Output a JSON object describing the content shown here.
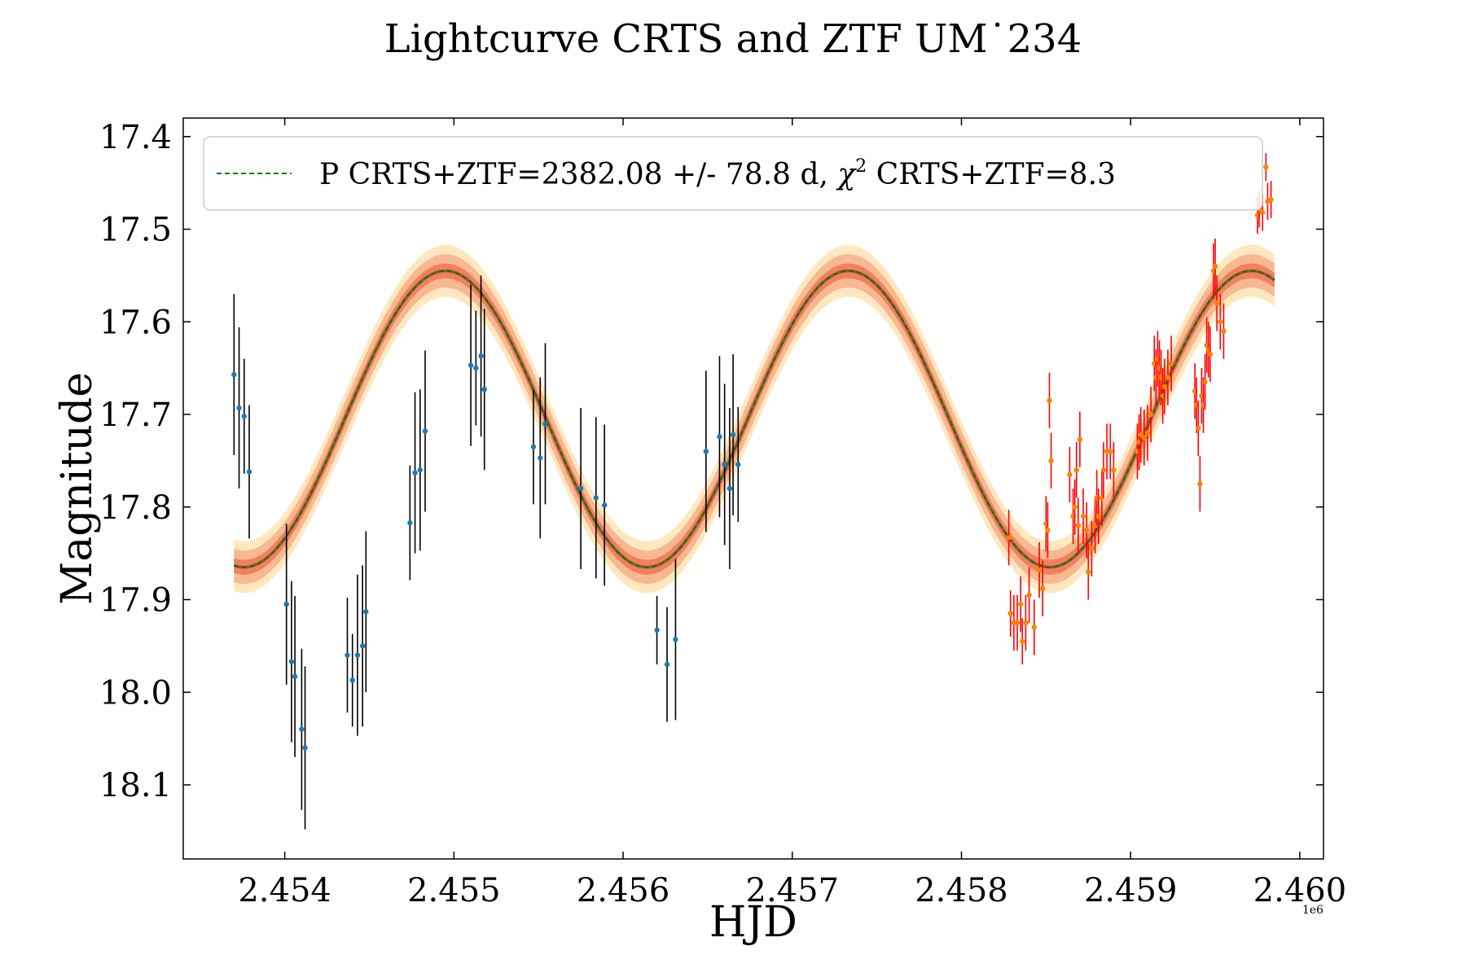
{
  "chart_data": {
    "type": "scatter",
    "title": "Lightcurve CRTS and ZTF UM˙234",
    "xlabel": "HJD",
    "ylabel": "Magnitude",
    "x_offset_label": "1e6",
    "xlim": [
      2453400,
      2460140
    ],
    "ylim": [
      18.18,
      17.38
    ],
    "y_inverted": true,
    "xticks": [
      2454000,
      2455000,
      2456000,
      2457000,
      2458000,
      2459000,
      2460000
    ],
    "xtick_labels": [
      "2.454",
      "2.455",
      "2.456",
      "2.457",
      "2.458",
      "2.459",
      "2.460"
    ],
    "yticks": [
      17.4,
      17.5,
      17.6,
      17.7,
      17.8,
      17.9,
      18.0,
      18.1
    ],
    "ytick_labels": [
      "17.4",
      "17.5",
      "17.6",
      "17.7",
      "17.8",
      "17.9",
      "18.0",
      "18.1"
    ],
    "legend": {
      "location": "top-left",
      "label_prefix": "P CRTS+ZTF=2382.08 +/- 78.8 d, ",
      "chi_symbol": "χ",
      "chi_exponent": "2",
      "label_suffix": " CRTS+ZTF=8.3"
    },
    "model": {
      "name": "P CRTS+ZTF=2382.08 +/- 78.8 d, χ² CRTS+ZTF=8.3",
      "type": "sinusoid",
      "period_days": 2382.08,
      "period_err_days": 78.8,
      "chi2": 8.3,
      "mean_mag": 17.705,
      "amplitude_mag": 0.16,
      "peak_hjd": 2454950,
      "x_start": 2453700,
      "x_end": 2459850,
      "band_inner_mag": 0.008,
      "band_mid_mag": 0.018,
      "band_outer_mag": 0.028,
      "line_color": "#008000",
      "core_color": "#a0522d",
      "band_inner_color": "#f08060",
      "band_mid_color": "#f8b890",
      "band_outer_color": "#ffe8c0"
    },
    "series": [
      {
        "name": "CRTS",
        "marker_color": "#1f77b4",
        "errorbar_color": "#000000",
        "points": [
          [
            2453700,
            17.657,
            0.087
          ],
          [
            2453730,
            17.693,
            0.087
          ],
          [
            2453760,
            17.702,
            0.062
          ],
          [
            2453790,
            17.762,
            0.072
          ],
          [
            2454010,
            17.905,
            0.087
          ],
          [
            2454040,
            17.967,
            0.087
          ],
          [
            2454060,
            17.983,
            0.087
          ],
          [
            2454100,
            18.04,
            0.087
          ],
          [
            2454120,
            18.06,
            0.088
          ],
          [
            2454370,
            17.96,
            0.062
          ],
          [
            2454400,
            17.987,
            0.05
          ],
          [
            2454430,
            17.96,
            0.087
          ],
          [
            2454460,
            17.95,
            0.087
          ],
          [
            2454480,
            17.913,
            0.087
          ],
          [
            2454740,
            17.817,
            0.062
          ],
          [
            2454770,
            17.763,
            0.087
          ],
          [
            2454800,
            17.76,
            0.087
          ],
          [
            2454830,
            17.718,
            0.087
          ],
          [
            2455100,
            17.647,
            0.087
          ],
          [
            2455130,
            17.65,
            0.062
          ],
          [
            2455160,
            17.637,
            0.087
          ],
          [
            2455180,
            17.673,
            0.087
          ],
          [
            2455470,
            17.735,
            0.062
          ],
          [
            2455510,
            17.747,
            0.087
          ],
          [
            2455540,
            17.71,
            0.087
          ],
          [
            2455750,
            17.78,
            0.087
          ],
          [
            2455840,
            17.79,
            0.087
          ],
          [
            2455890,
            17.798,
            0.087
          ],
          [
            2456200,
            17.933,
            0.037
          ],
          [
            2456260,
            17.97,
            0.062
          ],
          [
            2456310,
            17.943,
            0.087
          ],
          [
            2456490,
            17.74,
            0.087
          ],
          [
            2456570,
            17.724,
            0.087
          ],
          [
            2456600,
            17.754,
            0.087
          ],
          [
            2456630,
            17.78,
            0.087
          ],
          [
            2456650,
            17.722,
            0.087
          ],
          [
            2456680,
            17.754,
            0.062
          ]
        ]
      },
      {
        "name": "ZTF",
        "marker_color": "#ff8000",
        "errorbar_color": "#ff0000",
        "points": [
          [
            2458280,
            17.833,
            0.03
          ],
          [
            2458290,
            17.915,
            0.025
          ],
          [
            2458310,
            17.925,
            0.03
          ],
          [
            2458330,
            17.925,
            0.03
          ],
          [
            2458350,
            17.905,
            0.03
          ],
          [
            2458360,
            17.945,
            0.025
          ],
          [
            2458380,
            17.925,
            0.03
          ],
          [
            2458400,
            17.895,
            0.03
          ],
          [
            2458430,
            17.93,
            0.03
          ],
          [
            2458460,
            17.868,
            0.03
          ],
          [
            2458480,
            17.888,
            0.03
          ],
          [
            2458500,
            17.818,
            0.03
          ],
          [
            2458510,
            17.825,
            0.03
          ],
          [
            2458520,
            17.685,
            0.03
          ],
          [
            2458530,
            17.75,
            0.03
          ],
          [
            2458640,
            17.765,
            0.03
          ],
          [
            2458660,
            17.81,
            0.03
          ],
          [
            2458670,
            17.8,
            0.03
          ],
          [
            2458680,
            17.76,
            0.03
          ],
          [
            2458690,
            17.82,
            0.03
          ],
          [
            2458700,
            17.727,
            0.03
          ],
          [
            2458720,
            17.81,
            0.03
          ],
          [
            2458740,
            17.825,
            0.03
          ],
          [
            2458750,
            17.87,
            0.03
          ],
          [
            2458770,
            17.845,
            0.03
          ],
          [
            2458790,
            17.82,
            0.03
          ],
          [
            2458800,
            17.79,
            0.03
          ],
          [
            2458810,
            17.81,
            0.03
          ],
          [
            2458830,
            17.79,
            0.03
          ],
          [
            2458840,
            17.76,
            0.03
          ],
          [
            2458860,
            17.74,
            0.03
          ],
          [
            2458880,
            17.74,
            0.03
          ],
          [
            2458900,
            17.76,
            0.03
          ],
          [
            2459040,
            17.74,
            0.03
          ],
          [
            2459050,
            17.73,
            0.03
          ],
          [
            2459060,
            17.722,
            0.03
          ],
          [
            2459080,
            17.725,
            0.03
          ],
          [
            2459100,
            17.72,
            0.03
          ],
          [
            2459120,
            17.7,
            0.03
          ],
          [
            2459140,
            17.645,
            0.03
          ],
          [
            2459150,
            17.66,
            0.03
          ],
          [
            2459160,
            17.64,
            0.03
          ],
          [
            2459170,
            17.65,
            0.03
          ],
          [
            2459180,
            17.66,
            0.03
          ],
          [
            2459190,
            17.68,
            0.03
          ],
          [
            2459200,
            17.67,
            0.03
          ],
          [
            2459220,
            17.66,
            0.03
          ],
          [
            2459240,
            17.645,
            0.03
          ],
          [
            2459380,
            17.675,
            0.03
          ],
          [
            2459390,
            17.69,
            0.03
          ],
          [
            2459400,
            17.715,
            0.03
          ],
          [
            2459410,
            17.775,
            0.03
          ],
          [
            2459420,
            17.68,
            0.03
          ],
          [
            2459430,
            17.69,
            0.03
          ],
          [
            2459440,
            17.665,
            0.03
          ],
          [
            2459450,
            17.625,
            0.03
          ],
          [
            2459460,
            17.63,
            0.03
          ],
          [
            2459470,
            17.635,
            0.03
          ],
          [
            2459490,
            17.545,
            0.03
          ],
          [
            2459500,
            17.54,
            0.03
          ],
          [
            2459510,
            17.58,
            0.03
          ],
          [
            2459530,
            17.6,
            0.03
          ],
          [
            2459550,
            17.61,
            0.03
          ],
          [
            2459750,
            17.485,
            0.02
          ],
          [
            2459760,
            17.478,
            0.02
          ],
          [
            2459780,
            17.482,
            0.02
          ],
          [
            2459800,
            17.433,
            0.015
          ],
          [
            2459810,
            17.47,
            0.02
          ],
          [
            2459830,
            17.468,
            0.02
          ]
        ]
      }
    ]
  }
}
